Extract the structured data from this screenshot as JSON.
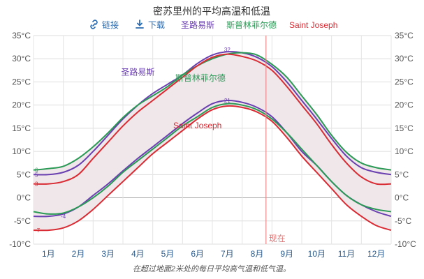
{
  "chart_data": {
    "type": "line",
    "title": "密苏里州的平均高温和低温",
    "toolbar": {
      "link_label": "链接",
      "link_icon": "link-icon",
      "download_label": "下载",
      "download_icon": "download-icon"
    },
    "legend": {
      "placement": "top",
      "items": [
        {
          "name": "圣路易斯",
          "color": "#6a3fb0"
        },
        {
          "name": "斯普林菲尔德",
          "color": "#2a9a55"
        },
        {
          "name": "Saint Joseph",
          "color": "#d92b33"
        }
      ]
    },
    "y_ticks_left": [
      "35°C",
      "30°C",
      "25°C",
      "20°C",
      "15°C",
      "10°C",
      "5°C",
      "0°C",
      "-5°C",
      "-10°C"
    ],
    "y_ticks_right": [
      "35°C",
      "30°C",
      "25°C",
      "20°C",
      "15°C",
      "10°C",
      "5°C",
      "0°C",
      "-5°C",
      "-10°C"
    ],
    "ylim": [
      -10,
      35
    ],
    "yticks": [
      35,
      30,
      25,
      20,
      15,
      10,
      5,
      0,
      -5,
      -10
    ],
    "grid": true,
    "x_categories": [
      "1月",
      "2月",
      "3月",
      "4月",
      "5月",
      "6月",
      "7月",
      "8月",
      "9月",
      "10月",
      "11月",
      "12月"
    ],
    "x": [
      0,
      0.5,
      1,
      1.5,
      2,
      2.5,
      3,
      3.5,
      4,
      4.5,
      5,
      5.5,
      6,
      6.5,
      7,
      7.5,
      8,
      8.5,
      9,
      9.5,
      10,
      10.5,
      11,
      11.5,
      12
    ],
    "series": [
      {
        "name": "圣路易斯",
        "kind": "high",
        "color": "#6a3fb0",
        "values": [
          5,
          5,
          5.5,
          7,
          10,
          13.5,
          17,
          20,
          22.5,
          24.5,
          26.5,
          29,
          30.8,
          31.5,
          31.3,
          30.3,
          28.3,
          25,
          21,
          17,
          12.8,
          9,
          6.5,
          5.5,
          5
        ]
      },
      {
        "name": "斯普林菲尔德",
        "kind": "high",
        "color": "#2a9a55",
        "values": [
          6,
          6.3,
          6.8,
          8.5,
          11,
          14,
          17.3,
          20,
          22,
          24,
          26.5,
          28.5,
          30,
          31,
          31.3,
          30.8,
          28.8,
          26,
          22,
          18,
          13.5,
          9.8,
          7.5,
          6.5,
          6
        ]
      },
      {
        "name": "Saint Joseph",
        "kind": "high",
        "color": "#d92b33",
        "values": [
          3,
          3,
          3.5,
          5,
          8.5,
          12,
          15.5,
          18.5,
          21,
          23.5,
          26,
          28.5,
          30.3,
          31,
          30.5,
          29.5,
          27.5,
          24,
          20,
          16,
          11.5,
          7.5,
          4.5,
          3,
          3
        ]
      },
      {
        "name": "圣路易斯",
        "kind": "low",
        "color": "#6a3fb0",
        "values": [
          -4,
          -4,
          -3.5,
          -2,
          0.5,
          3,
          5.8,
          8.5,
          11,
          13.5,
          16,
          18.3,
          20.3,
          21,
          20.6,
          19.5,
          17.5,
          14,
          10,
          7,
          3.5,
          0.5,
          -1.5,
          -3,
          -4
        ]
      },
      {
        "name": "斯普林菲尔德",
        "kind": "low",
        "color": "#2a9a55",
        "values": [
          -3,
          -3.5,
          -3.3,
          -2,
          0,
          2.5,
          5.5,
          8,
          10.5,
          13,
          15.5,
          17.5,
          19.5,
          20.3,
          20,
          19,
          17,
          14,
          10.5,
          7,
          3.5,
          0.5,
          -1.5,
          -2.5,
          -3
        ]
      },
      {
        "name": "Saint Joseph",
        "kind": "low",
        "color": "#d92b33",
        "values": [
          -7,
          -7,
          -6.5,
          -5,
          -2.5,
          0.5,
          3.5,
          6.5,
          9.5,
          12,
          14.5,
          17,
          19,
          19.8,
          19.5,
          18.5,
          16.5,
          13,
          9,
          5.5,
          2,
          -1.5,
          -4,
          -6,
          -7
        ]
      }
    ],
    "band": {
      "upper_series_index": 1,
      "lower_series_index": 5,
      "color": "#efe7ea"
    },
    "inline_labels": [
      {
        "text": "圣路易斯",
        "color": "#6a3fb0",
        "x": 3.5,
        "y": 26.5
      },
      {
        "text": "斯普林菲尔德",
        "color": "#2a9a55",
        "x": 5.6,
        "y": 25.2
      },
      {
        "text": "Saint Joseph",
        "color": "#d92b33",
        "x": 5.5,
        "y": 15
      }
    ],
    "end_labels": [
      {
        "text": "6",
        "color": "#2a9a55",
        "x": 0,
        "y": 6
      },
      {
        "text": "5",
        "color": "#6a3fb0",
        "x": 0,
        "y": 5
      },
      {
        "text": "3",
        "color": "#d92b33",
        "x": 0,
        "y": 3
      },
      {
        "text": "-4",
        "color": "#6a3fb0",
        "x": 1,
        "y": -4
      },
      {
        "text": "-7",
        "color": "#d92b33",
        "x": 0,
        "y": -7
      },
      {
        "text": "32",
        "color": "#6a3fb0",
        "x": 6.5,
        "y": 32
      },
      {
        "text": "21",
        "color": "#6a3fb0",
        "x": 6.5,
        "y": 21
      }
    ],
    "now_marker": {
      "label": "现在",
      "x": 7.8,
      "color": "#e6888a"
    },
    "caption": "在超过地面2米处的每日平均高气温和低气温。"
  }
}
